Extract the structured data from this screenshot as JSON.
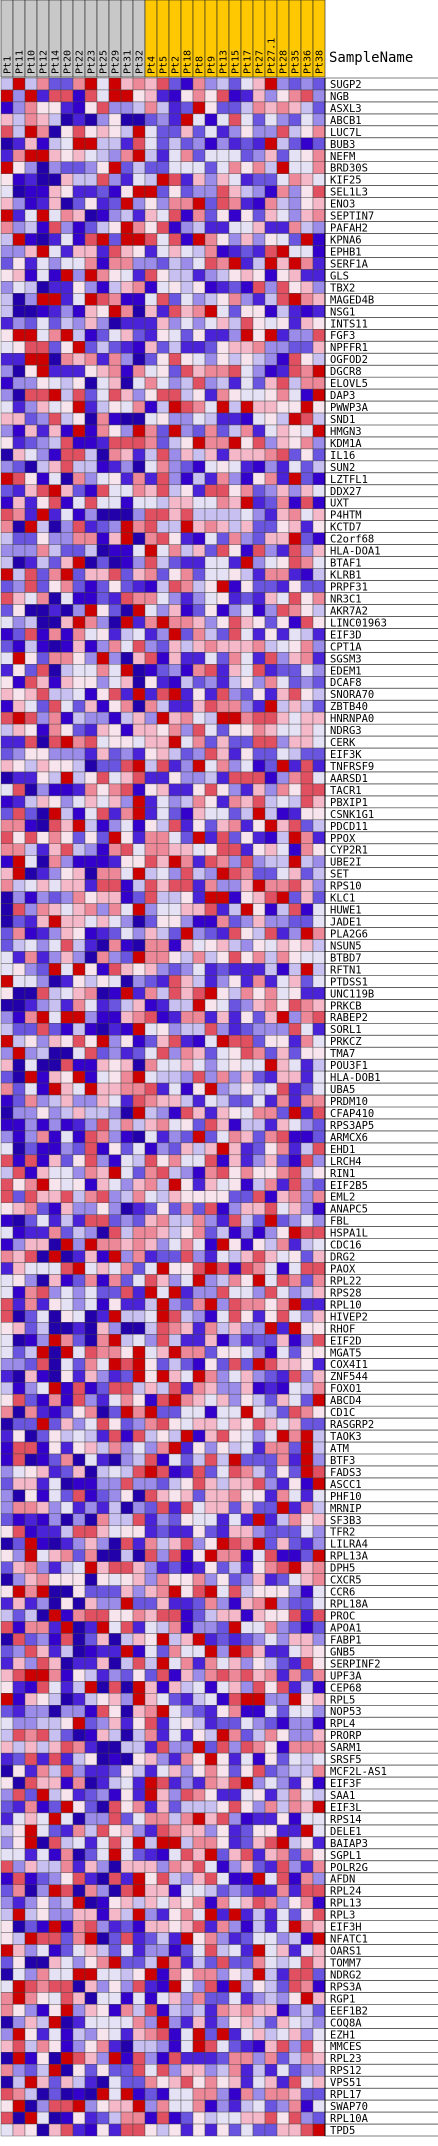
{
  "chart_data": {
    "type": "heatmap",
    "annotation_header": "SampleName",
    "columns": [
      {
        "name": "Pt1",
        "group": "gray"
      },
      {
        "name": "Pt11",
        "group": "gray"
      },
      {
        "name": "Pt10",
        "group": "gray"
      },
      {
        "name": "Pt12",
        "group": "gray"
      },
      {
        "name": "Pt14",
        "group": "gray"
      },
      {
        "name": "Pt20",
        "group": "gray"
      },
      {
        "name": "Pt22",
        "group": "gray"
      },
      {
        "name": "Pt23",
        "group": "gray"
      },
      {
        "name": "Pt25",
        "group": "gray"
      },
      {
        "name": "Pt29",
        "group": "gray"
      },
      {
        "name": "Pt31",
        "group": "gray"
      },
      {
        "name": "Pt32",
        "group": "gray"
      },
      {
        "name": "Pt4",
        "group": "gold"
      },
      {
        "name": "Pt5",
        "group": "gold"
      },
      {
        "name": "Pt2",
        "group": "gold"
      },
      {
        "name": "Pt18",
        "group": "gold"
      },
      {
        "name": "Pt8",
        "group": "gold"
      },
      {
        "name": "Pt9",
        "group": "gold"
      },
      {
        "name": "Pt13",
        "group": "gold"
      },
      {
        "name": "Pt15",
        "group": "gold"
      },
      {
        "name": "Pt17",
        "group": "gold"
      },
      {
        "name": "Pt27",
        "group": "gold"
      },
      {
        "name": "Pt27.1",
        "group": "gold"
      },
      {
        "name": "Pt28",
        "group": "gold"
      },
      {
        "name": "Pt35",
        "group": "gold"
      },
      {
        "name": "Pt36",
        "group": "gold"
      },
      {
        "name": "Pt38",
        "group": "gold"
      }
    ],
    "rows": [
      "SUGP2",
      "NGB",
      "ASXL3",
      "ABCB1",
      "LUC7L",
      "BUB3",
      "NEFM",
      "BRD30S",
      "KIF25",
      "SEL1L3",
      "ENO3",
      "SEPTIN7",
      "PAFAH2",
      "KPNA6",
      "EPHB1",
      "SERF1A",
      "GLS",
      "TBX2",
      "MAGED4B",
      "NSG1",
      "INTS11",
      "FGF3",
      "NPFFR1",
      "OGFOD2",
      "DGCR8",
      "ELOVL5",
      "DAP3",
      "PWWP3A",
      "SND1",
      "HMGN3",
      "KDM1A",
      "IL16",
      "SUN2",
      "LZTFL1",
      "DDX27",
      "UXT",
      "P4HTM",
      "KCTD7",
      "C2orf68",
      "HLA-DOA1",
      "BTAF1",
      "KLRB1",
      "PRPF31",
      "NR3C1",
      "AKR7A2",
      "LINC01963",
      "EIF3D",
      "CPT1A",
      "SGSM3",
      "EDEM1",
      "DCAF8",
      "SNORA70",
      "ZBTB40",
      "HNRNPA0",
      "NDRG3",
      "CERK",
      "EIF3K",
      "TNFRSF9",
      "AARSD1",
      "TACR1",
      "PBXIP1",
      "CSNK1G1",
      "PDCD11",
      "PPOX",
      "CYP2R1",
      "UBE2I",
      "SET",
      "RPS10",
      "KLC1",
      "HUWE1",
      "JADE1",
      "PLA2G6",
      "NSUN5",
      "BTBD7",
      "RFTN1",
      "PTDSS1",
      "UNC119B",
      "PRKCB",
      "RABEP2",
      "SORL1",
      "PRKCZ",
      "TMA7",
      "POU3F1",
      "HLA-DOB1",
      "UBA5",
      "PRDM10",
      "CFAP410",
      "RPS3AP5",
      "ARMCX6",
      "EHD1",
      "LRCH4",
      "RIN1",
      "EIF2B5",
      "EML2",
      "ANAPC5",
      "FBL",
      "HSPA1L",
      "CDC16",
      "DRG2",
      "PAOX",
      "RPL22",
      "RPS28",
      "RPL10",
      "HIVEP2",
      "RHOF",
      "EIF2D",
      "MGAT5",
      "COX4I1",
      "ZNF544",
      "FOXO1",
      "ABCD4",
      "CD1C",
      "RASGRP2",
      "TAOK3",
      "ATM",
      "BTF3",
      "FADS3",
      "ASCC1",
      "PHF10",
      "MRNIP",
      "SF3B3",
      "TFR2",
      "LILRA4",
      "RPL13A",
      "DPH5",
      "CXCR5",
      "CCR6",
      "RPL18A",
      "PROC",
      "APOA1",
      "FABP1",
      "GNB5",
      "SERPINF2",
      "UPF3A",
      "CEP68",
      "RPL5",
      "NOP53",
      "RPL4",
      "PRORP",
      "SARM1",
      "SRSF5",
      "MCF2L-AS1",
      "EIF3F",
      "SAA1",
      "EIF3L",
      "RPS14",
      "DELE1",
      "BAIAP3",
      "SGPL1",
      "POLR2G",
      "AFDN",
      "RPL24",
      "RPL13",
      "RPL3",
      "EIF3H",
      "NFATC1",
      "OARS1",
      "TOMM7",
      "NDRG2",
      "RPS3A",
      "RGP1",
      "EEF1B2",
      "COQ8A",
      "EZH1",
      "MMCES",
      "RPL23",
      "RPS12",
      "VPS51",
      "RPL17",
      "SWAP70",
      "RPL10A",
      "TPD5"
    ]
  }
}
